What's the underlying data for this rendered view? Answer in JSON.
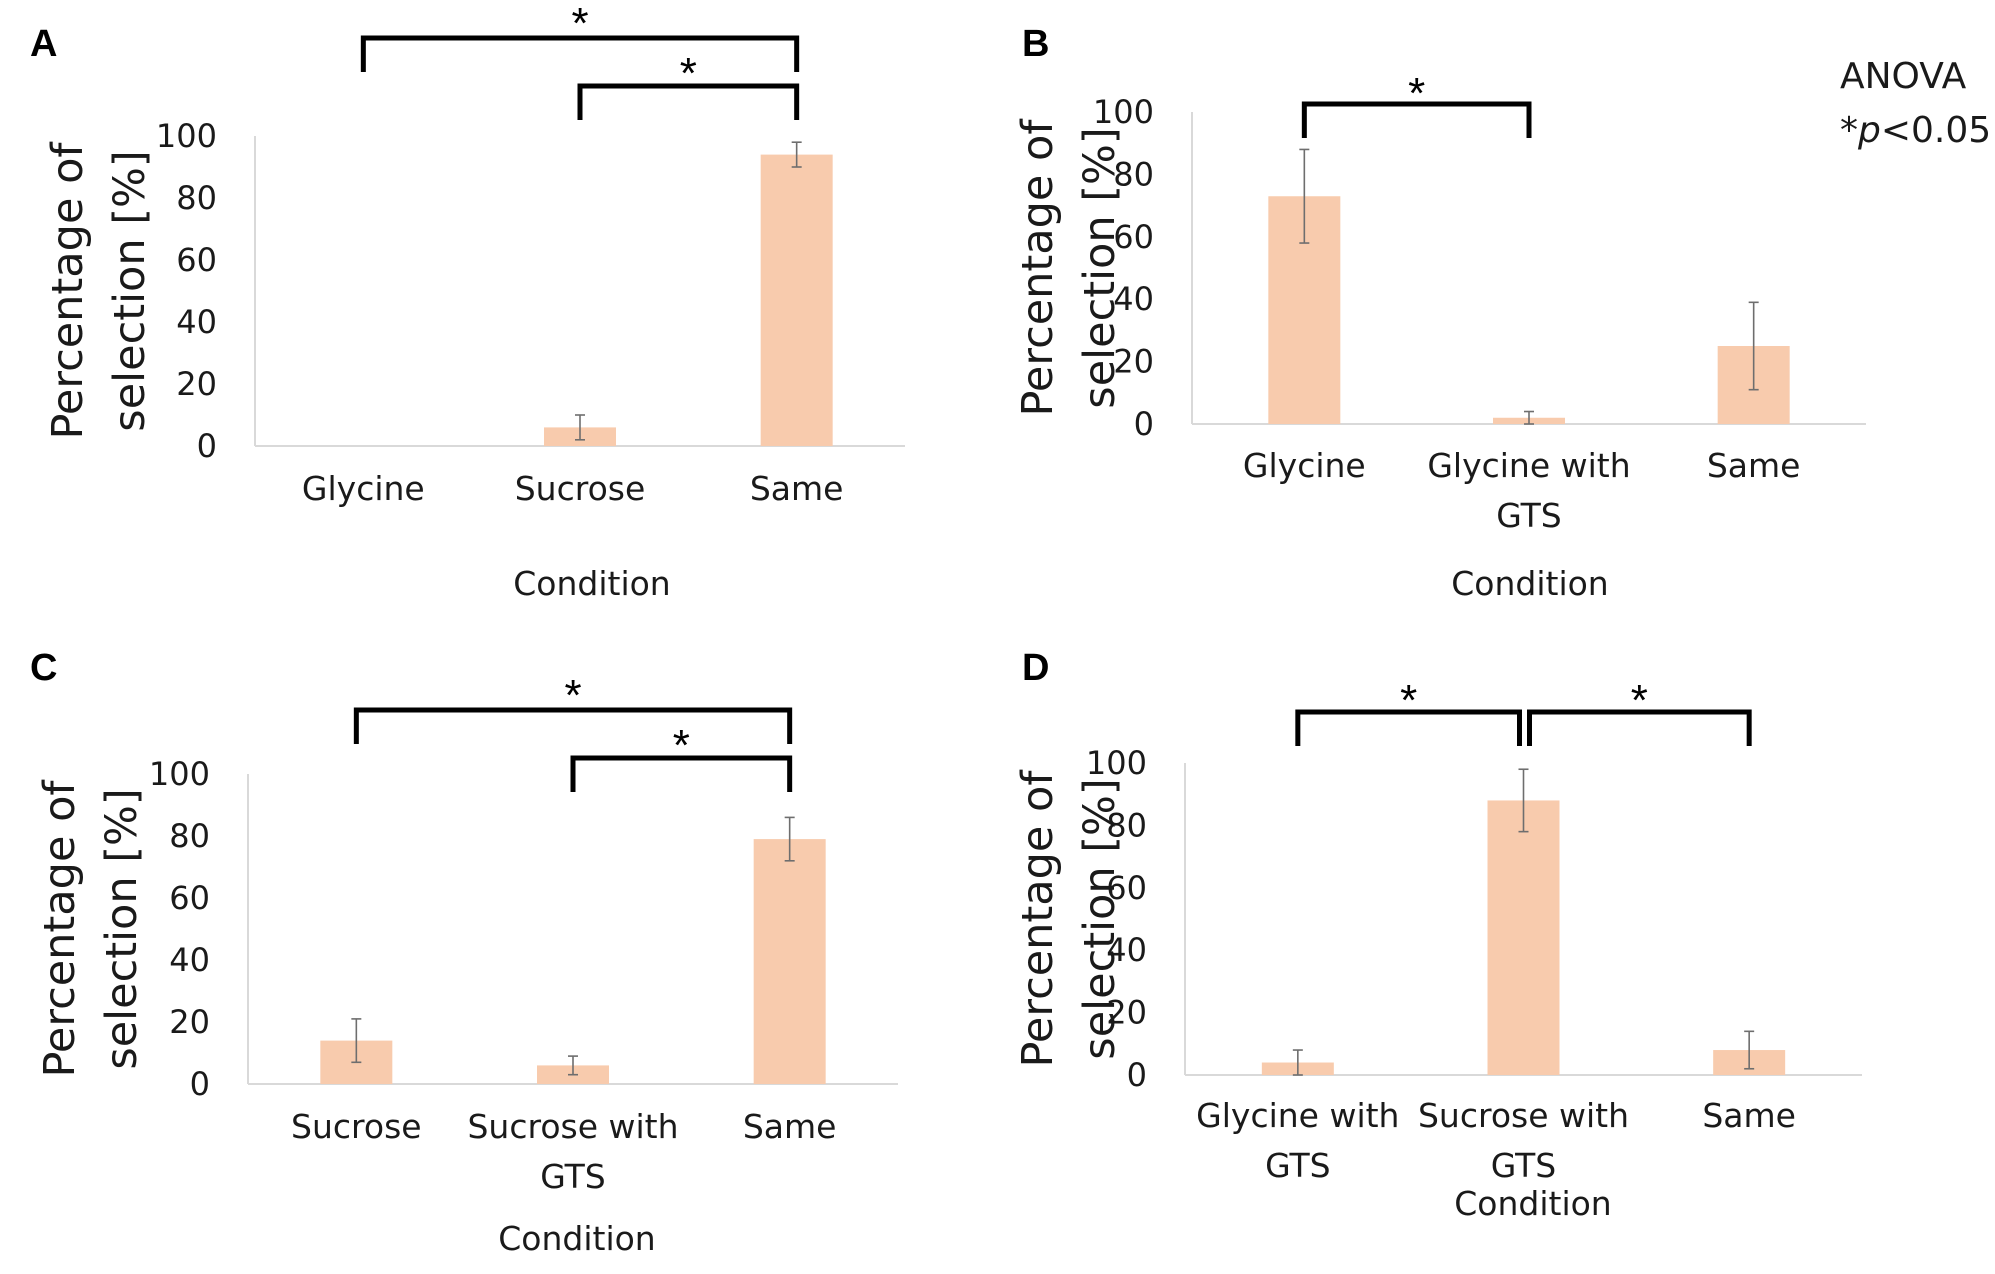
{
  "legend_note": {
    "line1": "ANOVA",
    "line2_star": "*",
    "line2_p": "p",
    "line2_rest": "<0.05"
  },
  "chart_data": [
    {
      "panel": "A",
      "type": "bar",
      "categories": [
        "Glycine",
        "Sucrose",
        "Same"
      ],
      "values": [
        0,
        6,
        94
      ],
      "errors": [
        0,
        4,
        4
      ],
      "ylim": [
        0,
        100
      ],
      "yticks": [
        0,
        20,
        40,
        60,
        80,
        100
      ],
      "ylabel_line1": "Percentage of",
      "ylabel_line2": "selection [%]",
      "xlabel": "Condition",
      "color": "#f8cbad",
      "significance": [
        {
          "from": 0,
          "to": 2,
          "label": "*"
        },
        {
          "from": 1,
          "to": 2,
          "label": "*"
        }
      ]
    },
    {
      "panel": "B",
      "type": "bar",
      "categories": [
        "Glycine",
        "Glycine with GTS",
        "Same"
      ],
      "values": [
        73,
        2,
        25
      ],
      "errors": [
        15,
        2,
        14
      ],
      "ylim": [
        0,
        100
      ],
      "yticks": [
        0,
        20,
        40,
        60,
        80,
        100
      ],
      "ylabel_line1": "Percentage of",
      "ylabel_line2": "selection [%]",
      "xlabel": "Condition",
      "color": "#f8cbad",
      "significance": [
        {
          "from": 0,
          "to": 1,
          "label": "*"
        }
      ]
    },
    {
      "panel": "C",
      "type": "bar",
      "categories": [
        "Sucrose",
        "Sucrose with GTS",
        "Same"
      ],
      "values": [
        14,
        6,
        79
      ],
      "errors": [
        7,
        3,
        7
      ],
      "ylim": [
        0,
        100
      ],
      "yticks": [
        0,
        20,
        40,
        60,
        80,
        100
      ],
      "ylabel_line1": "Percentage of",
      "ylabel_line2": "selection [%]",
      "xlabel": "Condition",
      "color": "#f8cbad",
      "significance": [
        {
          "from": 0,
          "to": 2,
          "label": "*"
        },
        {
          "from": 1,
          "to": 2,
          "label": "*"
        }
      ]
    },
    {
      "panel": "D",
      "type": "bar",
      "categories": [
        "Glycine with GTS",
        "Sucrose with GTS",
        "Same"
      ],
      "values": [
        4,
        88,
        8
      ],
      "errors": [
        4,
        10,
        6
      ],
      "ylim": [
        0,
        100
      ],
      "yticks": [
        0,
        20,
        40,
        60,
        80,
        100
      ],
      "ylabel_line1": "Percentage of",
      "ylabel_line2": "selection [%]",
      "xlabel": "Condition",
      "color": "#f8cbad",
      "significance": [
        {
          "from": 0,
          "to": 1,
          "label": "*"
        },
        {
          "from": 1,
          "to": 2,
          "label": "*"
        }
      ]
    }
  ]
}
